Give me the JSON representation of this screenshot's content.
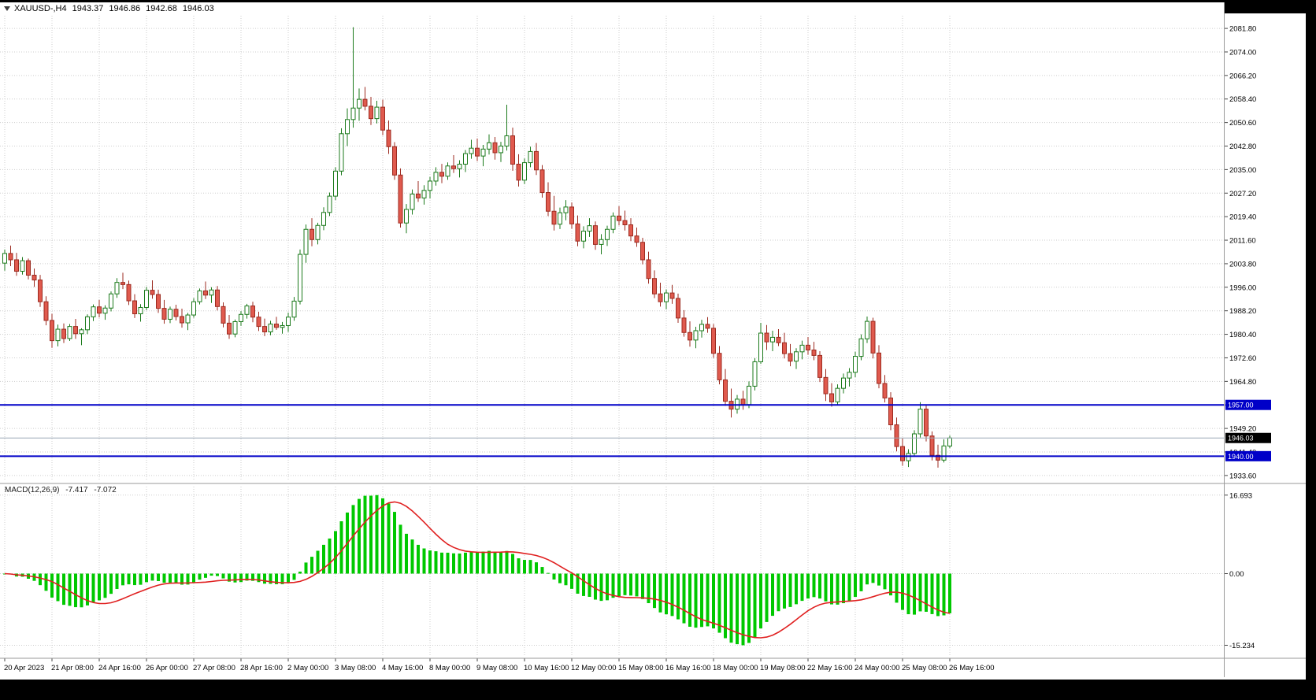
{
  "header": {
    "symbol": "XAUUSD-,H4",
    "open": "1943.37",
    "high": "1946.86",
    "low": "1942.68",
    "close": "1946.03"
  },
  "chart_data": {
    "type": "candlestick",
    "symbol": "XAUUSD-",
    "timeframe": "H4",
    "ylim": [
      1932.0,
      2086.0
    ],
    "price_ticks": [
      "2081.80",
      "2074.00",
      "2066.20",
      "2058.40",
      "2050.60",
      "2042.80",
      "2035.00",
      "2027.20",
      "2019.40",
      "2011.60",
      "2003.80",
      "1996.00",
      "1988.20",
      "1980.40",
      "1972.60",
      "1964.80",
      "1957.00",
      "1949.20",
      "1941.40",
      "1933.60"
    ],
    "time_labels": [
      "20 Apr 2023",
      "21 Apr 08:00",
      "24 Apr 16:00",
      "26 Apr 00:00",
      "27 Apr 08:00",
      "28 Apr 16:00",
      "2 May 00:00",
      "3 May 08:00",
      "4 May 16:00",
      "8 May 00:00",
      "9 May 08:00",
      "10 May 16:00",
      "12 May 00:00",
      "15 May 08:00",
      "16 May 16:00",
      "18 May 00:00",
      "19 May 08:00",
      "22 May 16:00",
      "24 May 00:00",
      "25 May 08:00",
      "26 May 16:00"
    ],
    "candles_per_label": 8,
    "hlines": [
      {
        "label": "1957.00",
        "value": 1957.0,
        "color": "#0000c8"
      },
      {
        "label": "1940.00",
        "value": 1940.0,
        "color": "#0000c8"
      }
    ],
    "current_price": {
      "label": "1946.03",
      "value": 1946.03,
      "line_color": "#9aa7b5",
      "badge_color": "#000000"
    },
    "colors": {
      "bull_fill": "#ffffff",
      "bull_border": "#1b7a1b",
      "bear_fill": "#e05a4e",
      "bear_border": "#9c2b20",
      "grid": "#cdcdcd",
      "separator": "#9a9a9a"
    },
    "macd": {
      "label": "MACD(12,26,9)",
      "main_value": "-7.417",
      "signal_value": "-7.072",
      "fast": 12,
      "slow": 26,
      "signal_period": 9,
      "axis_ticks": [
        "16.693",
        "0.00",
        "-15.234"
      ],
      "ylim": [
        -17.5,
        18.5
      ],
      "histogram_color": "#00c800",
      "signal_color": "#e02020"
    },
    "candles": [
      [
        2004.0,
        2008.5,
        2001.5,
        2007.2
      ],
      [
        2007.2,
        2009.8,
        2003.0,
        2005.1
      ],
      [
        2005.1,
        2007.4,
        1999.8,
        2001.3
      ],
      [
        2001.3,
        2006.0,
        2000.2,
        2004.8
      ],
      [
        2004.8,
        2005.5,
        1998.6,
        2000.0
      ],
      [
        2000.0,
        2002.2,
        1996.1,
        1998.4
      ],
      [
        1998.4,
        2000.1,
        1989.5,
        1991.2
      ],
      [
        1991.2,
        1993.0,
        1983.4,
        1985.0
      ],
      [
        1985.0,
        1987.2,
        1975.9,
        1978.3
      ],
      [
        1978.3,
        1983.6,
        1976.4,
        1982.1
      ],
      [
        1982.1,
        1984.0,
        1977.5,
        1979.0
      ],
      [
        1979.0,
        1983.8,
        1978.2,
        1983.0
      ],
      [
        1983.0,
        1985.5,
        1978.9,
        1980.6
      ],
      [
        1980.6,
        1982.4,
        1976.8,
        1981.9
      ],
      [
        1981.9,
        1987.0,
        1980.5,
        1986.2
      ],
      [
        1986.2,
        1990.3,
        1984.8,
        1989.5
      ],
      [
        1989.5,
        1991.8,
        1986.0,
        1987.4
      ],
      [
        1987.4,
        1990.0,
        1985.2,
        1989.1
      ],
      [
        1989.1,
        1994.6,
        1988.0,
        1993.8
      ],
      [
        1993.8,
        1999.0,
        1992.5,
        1997.6
      ],
      [
        1997.6,
        2000.8,
        1995.4,
        1996.9
      ],
      [
        1996.9,
        1998.2,
        1990.1,
        1991.5
      ],
      [
        1991.5,
        1993.7,
        1985.8,
        1987.2
      ],
      [
        1987.2,
        1990.4,
        1984.6,
        1989.3
      ],
      [
        1989.3,
        1996.1,
        1988.4,
        1995.0
      ],
      [
        1995.0,
        1998.3,
        1992.2,
        1993.6
      ],
      [
        1993.6,
        1995.2,
        1987.5,
        1989.0
      ],
      [
        1989.0,
        1991.8,
        1983.9,
        1985.4
      ],
      [
        1985.4,
        1989.6,
        1984.1,
        1988.7
      ],
      [
        1988.7,
        1990.2,
        1985.0,
        1986.3
      ],
      [
        1986.3,
        1988.9,
        1982.6,
        1984.2
      ],
      [
        1984.2,
        1987.5,
        1981.8,
        1986.8
      ],
      [
        1986.8,
        1992.4,
        1985.9,
        1991.2
      ],
      [
        1991.2,
        1995.6,
        1990.3,
        1994.8
      ],
      [
        1994.8,
        1997.9,
        1992.1,
        1993.4
      ],
      [
        1993.4,
        1996.0,
        1990.8,
        1995.1
      ],
      [
        1995.1,
        1996.4,
        1988.3,
        1989.6
      ],
      [
        1989.6,
        1991.0,
        1982.7,
        1984.1
      ],
      [
        1984.1,
        1986.8,
        1978.9,
        1980.5
      ],
      [
        1980.5,
        1985.3,
        1979.4,
        1984.6
      ],
      [
        1984.6,
        1988.1,
        1983.2,
        1987.0
      ],
      [
        1987.0,
        1990.5,
        1985.6,
        1989.8
      ],
      [
        1989.8,
        1991.2,
        1984.4,
        1986.1
      ],
      [
        1986.1,
        1987.9,
        1981.5,
        1983.0
      ],
      [
        1983.0,
        1985.6,
        1979.8,
        1981.2
      ],
      [
        1981.2,
        1984.9,
        1980.1,
        1983.8
      ],
      [
        1983.8,
        1986.2,
        1981.9,
        1982.7
      ],
      [
        1982.7,
        1984.5,
        1980.6,
        1983.3
      ],
      [
        1983.3,
        1987.6,
        1981.2,
        1986.1
      ],
      [
        1986.1,
        1992.8,
        1984.9,
        1991.4
      ],
      [
        1991.4,
        2008.5,
        1990.3,
        2006.9
      ],
      [
        2006.9,
        2016.8,
        2004.1,
        2015.2
      ],
      [
        2015.2,
        2018.9,
        2009.6,
        2011.8
      ],
      [
        2011.8,
        2017.4,
        2010.2,
        2016.5
      ],
      [
        2016.5,
        2022.5,
        2014.9,
        2020.8
      ],
      [
        2020.8,
        2027.4,
        2019.6,
        2026.2
      ],
      [
        2026.2,
        2035.8,
        2024.9,
        2034.5
      ],
      [
        2034.5,
        2048.7,
        2033.1,
        2046.9
      ],
      [
        2046.9,
        2055.3,
        2042.8,
        2051.6
      ],
      [
        2051.6,
        2082.2,
        2048.9,
        2055.4
      ],
      [
        2055.4,
        2061.9,
        2051.2,
        2058.3
      ],
      [
        2058.3,
        2062.4,
        2054.6,
        2056.0
      ],
      [
        2056.0,
        2059.1,
        2049.8,
        2051.9
      ],
      [
        2051.9,
        2057.8,
        2050.3,
        2055.7
      ],
      [
        2055.7,
        2058.2,
        2046.4,
        2048.1
      ],
      [
        2048.1,
        2051.3,
        2040.2,
        2042.6
      ],
      [
        2042.6,
        2044.1,
        2031.6,
        2033.2
      ],
      [
        2033.2,
        2035.4,
        2015.8,
        2017.3
      ],
      [
        2017.3,
        2023.6,
        2013.9,
        2021.8
      ],
      [
        2021.8,
        2028.4,
        2020.1,
        2026.9
      ],
      [
        2026.9,
        2031.2,
        2024.3,
        2025.6
      ],
      [
        2025.6,
        2029.8,
        2023.4,
        2028.1
      ],
      [
        2028.1,
        2032.6,
        2025.4,
        2031.2
      ],
      [
        2031.2,
        2035.8,
        2029.7,
        2034.1
      ],
      [
        2034.1,
        2036.9,
        2030.5,
        2032.8
      ],
      [
        2032.8,
        2037.4,
        2031.6,
        2036.2
      ],
      [
        2036.2,
        2039.8,
        2033.9,
        2035.3
      ],
      [
        2035.3,
        2038.1,
        2032.4,
        2036.8
      ],
      [
        2036.8,
        2041.5,
        2034.2,
        2040.3
      ],
      [
        2040.3,
        2044.9,
        2038.6,
        2042.1
      ],
      [
        2042.1,
        2045.3,
        2037.8,
        2039.5
      ],
      [
        2039.5,
        2043.2,
        2036.1,
        2041.8
      ],
      [
        2041.8,
        2046.7,
        2040.0,
        2043.9
      ],
      [
        2043.9,
        2045.8,
        2038.3,
        2040.6
      ],
      [
        2040.6,
        2044.2,
        2037.5,
        2042.8
      ],
      [
        2042.8,
        2056.5,
        2041.3,
        2046.2
      ],
      [
        2046.2,
        2048.9,
        2034.6,
        2036.8
      ],
      [
        2036.8,
        2040.1,
        2029.4,
        2031.5
      ],
      [
        2031.5,
        2038.7,
        2030.2,
        2037.3
      ],
      [
        2037.3,
        2042.6,
        2035.8,
        2041.0
      ],
      [
        2041.0,
        2043.8,
        2033.2,
        2034.9
      ],
      [
        2034.9,
        2036.5,
        2025.7,
        2027.4
      ],
      [
        2027.4,
        2030.8,
        2019.6,
        2021.2
      ],
      [
        2021.2,
        2026.3,
        2014.8,
        2016.9
      ],
      [
        2016.9,
        2022.4,
        2015.3,
        2020.7
      ],
      [
        2020.7,
        2024.9,
        2018.2,
        2022.6
      ],
      [
        2022.6,
        2024.1,
        2015.4,
        2017.0
      ],
      [
        2017.0,
        2019.8,
        2009.6,
        2011.3
      ],
      [
        2011.3,
        2016.2,
        2008.9,
        2014.6
      ],
      [
        2014.6,
        2018.9,
        2012.7,
        2016.4
      ],
      [
        2016.4,
        2017.8,
        2008.4,
        2010.2
      ],
      [
        2010.2,
        2013.6,
        2006.9,
        2011.8
      ],
      [
        2011.8,
        2016.4,
        2009.7,
        2015.2
      ],
      [
        2015.2,
        2020.8,
        2013.9,
        2019.6
      ],
      [
        2019.6,
        2022.9,
        2016.5,
        2018.1
      ],
      [
        2018.1,
        2021.4,
        2014.8,
        2016.7
      ],
      [
        2016.7,
        2018.9,
        2011.3,
        2013.0
      ],
      [
        2013.0,
        2015.8,
        2009.4,
        2010.9
      ],
      [
        2010.9,
        2012.4,
        2003.6,
        2005.1
      ],
      [
        2005.1,
        2007.8,
        1997.2,
        1998.9
      ],
      [
        1998.9,
        2001.6,
        1992.4,
        1993.8
      ],
      [
        1993.8,
        1997.5,
        1989.6,
        1991.2
      ],
      [
        1991.2,
        1995.3,
        1988.7,
        1994.1
      ],
      [
        1994.1,
        1996.8,
        1990.5,
        1992.3
      ],
      [
        1992.3,
        1993.9,
        1984.2,
        1985.8
      ],
      [
        1985.8,
        1988.4,
        1979.6,
        1981.0
      ],
      [
        1981.0,
        1984.7,
        1976.3,
        1978.5
      ],
      [
        1978.5,
        1982.9,
        1975.8,
        1981.6
      ],
      [
        1981.6,
        1985.2,
        1979.3,
        1983.7
      ],
      [
        1983.7,
        1986.1,
        1980.9,
        1982.4
      ],
      [
        1982.4,
        1983.8,
        1972.6,
        1974.1
      ],
      [
        1974.1,
        1976.5,
        1963.8,
        1965.3
      ],
      [
        1965.3,
        1968.9,
        1956.7,
        1958.2
      ],
      [
        1958.2,
        1962.4,
        1952.8,
        1955.6
      ],
      [
        1955.6,
        1960.3,
        1954.1,
        1958.9
      ],
      [
        1958.9,
        1961.7,
        1955.4,
        1957.1
      ],
      [
        1957.1,
        1964.8,
        1955.9,
        1963.2
      ],
      [
        1963.2,
        1972.5,
        1961.8,
        1971.3
      ],
      [
        1971.3,
        1984.2,
        1970.6,
        1980.8
      ],
      [
        1980.8,
        1983.5,
        1975.2,
        1977.9
      ],
      [
        1977.9,
        1981.6,
        1974.8,
        1979.4
      ],
      [
        1979.4,
        1982.1,
        1976.5,
        1977.6
      ],
      [
        1977.6,
        1980.9,
        1972.4,
        1974.0
      ],
      [
        1974.0,
        1977.2,
        1969.8,
        1971.5
      ],
      [
        1971.5,
        1975.8,
        1968.9,
        1974.6
      ],
      [
        1974.6,
        1978.3,
        1972.1,
        1976.8
      ],
      [
        1976.8,
        1979.5,
        1973.6,
        1975.2
      ],
      [
        1975.2,
        1977.9,
        1971.8,
        1973.4
      ],
      [
        1973.4,
        1974.8,
        1964.6,
        1966.1
      ],
      [
        1966.1,
        1968.9,
        1958.3,
        1960.7
      ],
      [
        1960.7,
        1964.2,
        1956.4,
        1958.0
      ],
      [
        1958.0,
        1963.8,
        1956.9,
        1962.5
      ],
      [
        1962.5,
        1967.4,
        1960.8,
        1965.9
      ],
      [
        1965.9,
        1969.2,
        1963.1,
        1967.8
      ],
      [
        1967.8,
        1974.6,
        1966.2,
        1973.1
      ],
      [
        1973.1,
        1980.4,
        1971.8,
        1978.9
      ],
      [
        1978.9,
        1986.3,
        1977.5,
        1984.7
      ],
      [
        1984.7,
        1985.9,
        1972.4,
        1974.2
      ],
      [
        1974.2,
        1976.8,
        1962.5,
        1964.1
      ],
      [
        1964.1,
        1966.9,
        1957.8,
        1959.3
      ],
      [
        1959.3,
        1961.2,
        1948.6,
        1950.4
      ],
      [
        1950.4,
        1952.8,
        1941.6,
        1943.2
      ],
      [
        1943.2,
        1945.9,
        1936.8,
        1938.5
      ],
      [
        1938.5,
        1942.3,
        1936.4,
        1940.9
      ],
      [
        1940.9,
        1948.6,
        1939.8,
        1947.4
      ],
      [
        1947.4,
        1957.9,
        1946.2,
        1955.6
      ],
      [
        1955.6,
        1956.8,
        1944.9,
        1946.7
      ],
      [
        1946.7,
        1948.2,
        1938.6,
        1940.3
      ],
      [
        1940.3,
        1943.8,
        1936.2,
        1938.7
      ],
      [
        1938.7,
        1945.6,
        1937.9,
        1943.4
      ],
      [
        1943.37,
        1946.86,
        1942.68,
        1946.03
      ]
    ]
  }
}
